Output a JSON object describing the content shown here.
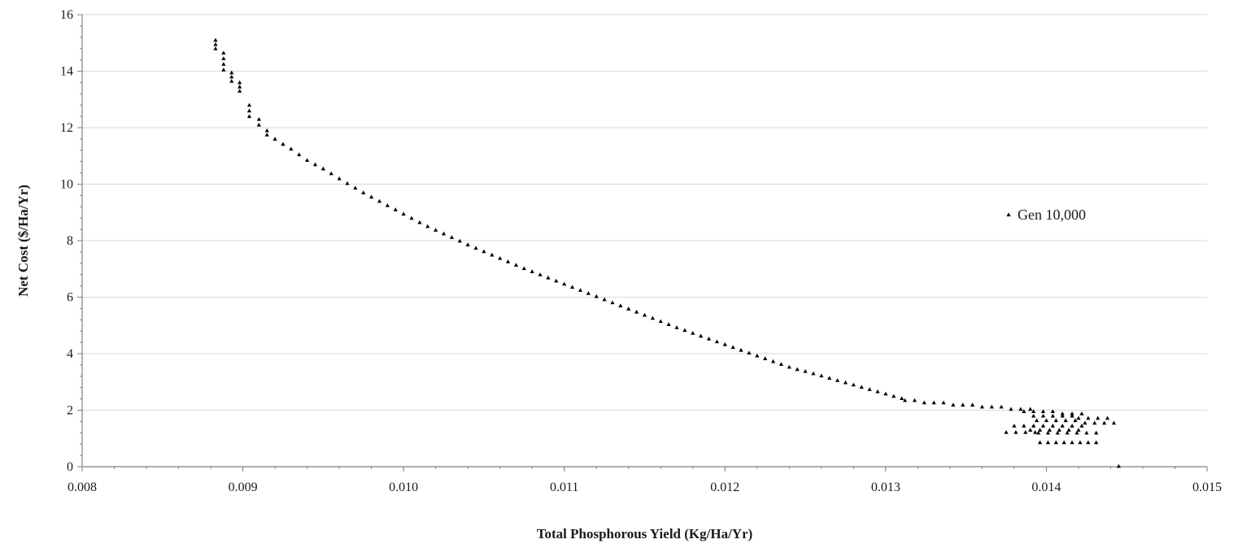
{
  "chart_data": {
    "type": "scatter",
    "title": "",
    "xlabel": "Total Phosphorous Yield (Kg/Ha/Yr)",
    "ylabel": "Net Cost ($/Ha/Yr)",
    "xlim": [
      0.008,
      0.015
    ],
    "ylim": [
      0,
      16
    ],
    "x_ticks": [
      "0.008",
      "0.009",
      "0.010",
      "0.011",
      "0.012",
      "0.013",
      "0.014",
      "0.015"
    ],
    "y_ticks": [
      "0",
      "2",
      "4",
      "6",
      "8",
      "10",
      "12",
      "14",
      "16"
    ],
    "grid": "horizontal",
    "legend_position": "right",
    "marker": "triangle",
    "marker_color": "#000000",
    "series": [
      {
        "name": "Gen 10,000",
        "points": [
          [
            0.00883,
            15.1
          ],
          [
            0.00883,
            14.95
          ],
          [
            0.00883,
            14.8
          ],
          [
            0.00888,
            14.65
          ],
          [
            0.00888,
            14.45
          ],
          [
            0.00888,
            14.25
          ],
          [
            0.00888,
            14.05
          ],
          [
            0.00893,
            13.95
          ],
          [
            0.00893,
            13.8
          ],
          [
            0.00893,
            13.65
          ],
          [
            0.00898,
            13.6
          ],
          [
            0.00898,
            13.45
          ],
          [
            0.00898,
            13.3
          ],
          [
            0.00904,
            12.8
          ],
          [
            0.00904,
            12.6
          ],
          [
            0.00904,
            12.4
          ],
          [
            0.0091,
            12.3
          ],
          [
            0.0091,
            12.1
          ],
          [
            0.00915,
            11.9
          ],
          [
            0.00915,
            11.75
          ],
          [
            0.0092,
            11.6
          ],
          [
            0.00925,
            11.42
          ],
          [
            0.0093,
            11.25
          ],
          [
            0.00935,
            11.05
          ],
          [
            0.0094,
            10.85
          ],
          [
            0.00945,
            10.7
          ],
          [
            0.0095,
            10.55
          ],
          [
            0.00955,
            10.38
          ],
          [
            0.0096,
            10.2
          ],
          [
            0.00965,
            10.03
          ],
          [
            0.0097,
            9.87
          ],
          [
            0.00975,
            9.7
          ],
          [
            0.0098,
            9.55
          ],
          [
            0.00985,
            9.4
          ],
          [
            0.0099,
            9.25
          ],
          [
            0.00995,
            9.1
          ],
          [
            0.01,
            8.95
          ],
          [
            0.01005,
            8.8
          ],
          [
            0.0101,
            8.65
          ],
          [
            0.01015,
            8.51
          ],
          [
            0.0102,
            8.38
          ],
          [
            0.01025,
            8.25
          ],
          [
            0.0103,
            8.12
          ],
          [
            0.01035,
            7.99
          ],
          [
            0.0104,
            7.86
          ],
          [
            0.01045,
            7.74
          ],
          [
            0.0105,
            7.62
          ],
          [
            0.01055,
            7.5
          ],
          [
            0.0106,
            7.38
          ],
          [
            0.01065,
            7.26
          ],
          [
            0.0107,
            7.14
          ],
          [
            0.01075,
            7.02
          ],
          [
            0.0108,
            6.91
          ],
          [
            0.01085,
            6.8
          ],
          [
            0.0109,
            6.69
          ],
          [
            0.01095,
            6.58
          ],
          [
            0.011,
            6.47
          ],
          [
            0.01105,
            6.36
          ],
          [
            0.0111,
            6.25
          ],
          [
            0.01115,
            6.14
          ],
          [
            0.0112,
            6.03
          ],
          [
            0.01125,
            5.92
          ],
          [
            0.0113,
            5.81
          ],
          [
            0.01135,
            5.7
          ],
          [
            0.0114,
            5.59
          ],
          [
            0.01145,
            5.48
          ],
          [
            0.0115,
            5.37
          ],
          [
            0.01155,
            5.26
          ],
          [
            0.0116,
            5.15
          ],
          [
            0.01165,
            5.04
          ],
          [
            0.0117,
            4.93
          ],
          [
            0.01175,
            4.83
          ],
          [
            0.0118,
            4.73
          ],
          [
            0.01185,
            4.63
          ],
          [
            0.0119,
            4.53
          ],
          [
            0.01195,
            4.43
          ],
          [
            0.012,
            4.33
          ],
          [
            0.01205,
            4.23
          ],
          [
            0.0121,
            4.13
          ],
          [
            0.01215,
            4.03
          ],
          [
            0.0122,
            3.93
          ],
          [
            0.01225,
            3.83
          ],
          [
            0.0123,
            3.73
          ],
          [
            0.01235,
            3.63
          ],
          [
            0.0124,
            3.53
          ],
          [
            0.01245,
            3.45
          ],
          [
            0.0125,
            3.38
          ],
          [
            0.01255,
            3.3
          ],
          [
            0.0126,
            3.22
          ],
          [
            0.01265,
            3.14
          ],
          [
            0.0127,
            3.06
          ],
          [
            0.01275,
            2.98
          ],
          [
            0.0128,
            2.9
          ],
          [
            0.01285,
            2.82
          ],
          [
            0.0129,
            2.74
          ],
          [
            0.01295,
            2.66
          ],
          [
            0.013,
            2.58
          ],
          [
            0.01305,
            2.5
          ],
          [
            0.0131,
            2.42
          ],
          [
            0.01312,
            2.35
          ],
          [
            0.01318,
            2.35
          ],
          [
            0.01324,
            2.27
          ],
          [
            0.0133,
            2.27
          ],
          [
            0.01336,
            2.27
          ],
          [
            0.01342,
            2.19
          ],
          [
            0.01348,
            2.19
          ],
          [
            0.01354,
            2.19
          ],
          [
            0.0136,
            2.12
          ],
          [
            0.01366,
            2.12
          ],
          [
            0.01372,
            2.12
          ],
          [
            0.01378,
            2.04
          ],
          [
            0.01384,
            2.04
          ],
          [
            0.0139,
            2.04
          ],
          [
            0.01386,
            1.96
          ],
          [
            0.01392,
            1.96
          ],
          [
            0.01398,
            1.96
          ],
          [
            0.01404,
            1.96
          ],
          [
            0.0141,
            1.88
          ],
          [
            0.01416,
            1.88
          ],
          [
            0.01422,
            1.88
          ],
          [
            0.01392,
            1.8
          ],
          [
            0.01398,
            1.8
          ],
          [
            0.01404,
            1.8
          ],
          [
            0.0141,
            1.8
          ],
          [
            0.01416,
            1.8
          ],
          [
            0.0142,
            1.72
          ],
          [
            0.01426,
            1.72
          ],
          [
            0.01432,
            1.72
          ],
          [
            0.01438,
            1.72
          ],
          [
            0.01394,
            1.64
          ],
          [
            0.014,
            1.64
          ],
          [
            0.01406,
            1.64
          ],
          [
            0.01412,
            1.64
          ],
          [
            0.01418,
            1.64
          ],
          [
            0.01424,
            1.55
          ],
          [
            0.0143,
            1.55
          ],
          [
            0.01436,
            1.55
          ],
          [
            0.01442,
            1.55
          ],
          [
            0.0138,
            1.45
          ],
          [
            0.01386,
            1.45
          ],
          [
            0.01392,
            1.45
          ],
          [
            0.01398,
            1.45
          ],
          [
            0.01404,
            1.45
          ],
          [
            0.0141,
            1.45
          ],
          [
            0.01416,
            1.45
          ],
          [
            0.01422,
            1.45
          ],
          [
            0.0139,
            1.3
          ],
          [
            0.01396,
            1.3
          ],
          [
            0.01402,
            1.3
          ],
          [
            0.01408,
            1.3
          ],
          [
            0.01414,
            1.3
          ],
          [
            0.0142,
            1.3
          ],
          [
            0.01395,
            1.2
          ],
          [
            0.01401,
            1.2
          ],
          [
            0.01407,
            1.2
          ],
          [
            0.01413,
            1.2
          ],
          [
            0.01419,
            1.2
          ],
          [
            0.01425,
            1.2
          ],
          [
            0.01431,
            1.2
          ],
          [
            0.01375,
            1.22
          ],
          [
            0.01381,
            1.22
          ],
          [
            0.01387,
            1.22
          ],
          [
            0.01393,
            1.22
          ],
          [
            0.01396,
            0.86
          ],
          [
            0.01401,
            0.86
          ],
          [
            0.01406,
            0.86
          ],
          [
            0.01411,
            0.86
          ],
          [
            0.01416,
            0.86
          ],
          [
            0.01421,
            0.86
          ],
          [
            0.01426,
            0.86
          ],
          [
            0.01431,
            0.86
          ],
          [
            0.01445,
            0.02
          ]
        ]
      }
    ]
  }
}
